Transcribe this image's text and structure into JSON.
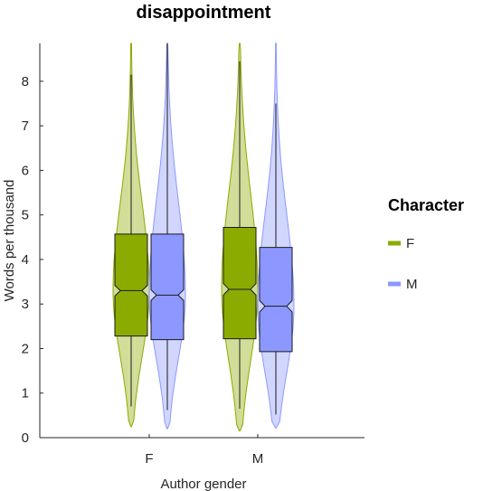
{
  "chart_data": {
    "type": "violin",
    "title": "disappointment",
    "xlabel": "Author gender",
    "ylabel": "Words per thousand",
    "ylim": [
      0,
      8.85
    ],
    "yticks": [
      0,
      1,
      2,
      3,
      4,
      5,
      6,
      7,
      8
    ],
    "categories": [
      "F",
      "M"
    ],
    "grid": false,
    "legend": {
      "title": "Character",
      "placement": "right",
      "entries": [
        {
          "label": "F",
          "color": "#8bab00"
        },
        {
          "label": "M",
          "color": "#8c98ff"
        }
      ]
    },
    "series": [
      {
        "name": "F",
        "color": "#8bab00",
        "stats": [
          {
            "category": "F",
            "min": 0.25,
            "whisker_low": 0.7,
            "q1": 2.28,
            "median": 3.3,
            "q3": 4.57,
            "whisker_high": 8.15,
            "max": 8.85,
            "notch_low": 3.18,
            "notch_high": 3.42
          },
          {
            "category": "M",
            "min": 0.15,
            "whisker_low": 0.65,
            "q1": 2.22,
            "median": 3.33,
            "q3": 4.72,
            "whisker_high": 8.45,
            "max": 8.85,
            "notch_low": 3.2,
            "notch_high": 3.46
          }
        ]
      },
      {
        "name": "M",
        "color": "#8c98ff",
        "stats": [
          {
            "category": "F",
            "min": 0.2,
            "whisker_low": 0.62,
            "q1": 2.2,
            "median": 3.2,
            "q3": 4.57,
            "whisker_high": 8.85,
            "max": 8.85,
            "notch_low": 3.08,
            "notch_high": 3.32
          },
          {
            "category": "M",
            "min": 0.22,
            "whisker_low": 0.52,
            "q1": 1.93,
            "median": 2.95,
            "q3": 4.27,
            "whisker_high": 7.5,
            "max": 8.85,
            "notch_low": 2.82,
            "notch_high": 3.08
          }
        ]
      }
    ]
  }
}
